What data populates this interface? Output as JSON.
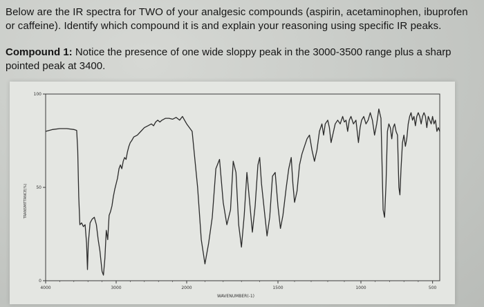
{
  "question": {
    "text": "Below are the IR spectra for TWO of your analgesic compounds (aspirin, acetaminophen, ibuprofen or caffeine). Identify which compound it is and explain your reasoning using specific IR peaks."
  },
  "compound": {
    "label": "Compound 1:",
    "note": "Notice the presence of one wide sloppy peak in the 3000-3500 range plus a sharp pointed peak at 3400."
  },
  "colors": {
    "trace": "#2a2a2a",
    "frame": "#3a3a3a",
    "paper": "#e4e6e2"
  },
  "chart_data": {
    "type": "line",
    "x_axis": {
      "range": [
        4000,
        450
      ],
      "tick_labels": [
        "4000",
        "3000",
        "2000",
        "1500",
        "1000",
        "500"
      ],
      "label": "WAVENUMBER(-1)",
      "reversed": true
    },
    "y_axis": {
      "range": [
        0,
        100
      ],
      "tick_labels": [
        "100",
        "50",
        "0"
      ],
      "label": "TRANSMITTANCE(%)"
    },
    "grid": false,
    "series": [
      {
        "points": [
          [
            4000,
            80
          ],
          [
            3900,
            81
          ],
          [
            3800,
            81.5
          ],
          [
            3700,
            81.5
          ],
          [
            3600,
            81
          ],
          [
            3560,
            80.5
          ],
          [
            3545,
            70
          ],
          [
            3530,
            45
          ],
          [
            3515,
            30
          ],
          [
            3490,
            31
          ],
          [
            3465,
            29
          ],
          [
            3440,
            30
          ],
          [
            3420,
            20
          ],
          [
            3407,
            6
          ],
          [
            3395,
            20
          ],
          [
            3370,
            31
          ],
          [
            3340,
            33
          ],
          [
            3310,
            34
          ],
          [
            3280,
            30
          ],
          [
            3255,
            22
          ],
          [
            3230,
            16
          ],
          [
            3200,
            5
          ],
          [
            3180,
            3
          ],
          [
            3160,
            12
          ],
          [
            3140,
            27
          ],
          [
            3120,
            22
          ],
          [
            3100,
            35
          ],
          [
            3080,
            37
          ],
          [
            3060,
            40
          ],
          [
            3040,
            45
          ],
          [
            3020,
            49
          ],
          [
            3000,
            52
          ],
          [
            2980,
            55
          ],
          [
            2960,
            60
          ],
          [
            2940,
            62
          ],
          [
            2920,
            60
          ],
          [
            2900,
            64
          ],
          [
            2880,
            66
          ],
          [
            2860,
            65
          ],
          [
            2840,
            69
          ],
          [
            2820,
            72
          ],
          [
            2800,
            74
          ],
          [
            2780,
            75
          ],
          [
            2750,
            77
          ],
          [
            2700,
            78
          ],
          [
            2650,
            80
          ],
          [
            2600,
            82
          ],
          [
            2550,
            83
          ],
          [
            2500,
            84
          ],
          [
            2470,
            83
          ],
          [
            2440,
            85
          ],
          [
            2410,
            86
          ],
          [
            2380,
            85
          ],
          [
            2350,
            86
          ],
          [
            2300,
            87
          ],
          [
            2250,
            87
          ],
          [
            2200,
            86.5
          ],
          [
            2150,
            87.5
          ],
          [
            2100,
            86
          ],
          [
            2060,
            88
          ],
          [
            2030,
            86
          ],
          [
            2000,
            84
          ],
          [
            1970,
            80
          ],
          [
            1940,
            50
          ],
          [
            1920,
            22
          ],
          [
            1900,
            9
          ],
          [
            1880,
            20
          ],
          [
            1860,
            34
          ],
          [
            1840,
            60
          ],
          [
            1820,
            65
          ],
          [
            1800,
            42
          ],
          [
            1780,
            30
          ],
          [
            1760,
            38
          ],
          [
            1745,
            64
          ],
          [
            1730,
            58
          ],
          [
            1715,
            30
          ],
          [
            1700,
            18
          ],
          [
            1685,
            35
          ],
          [
            1670,
            58
          ],
          [
            1655,
            42
          ],
          [
            1640,
            26
          ],
          [
            1625,
            40
          ],
          [
            1610,
            62
          ],
          [
            1600,
            66
          ],
          [
            1590,
            52
          ],
          [
            1575,
            38
          ],
          [
            1560,
            24
          ],
          [
            1545,
            34
          ],
          [
            1530,
            56
          ],
          [
            1515,
            58
          ],
          [
            1500,
            40
          ],
          [
            1485,
            28
          ],
          [
            1470,
            35
          ],
          [
            1450,
            50
          ],
          [
            1435,
            60
          ],
          [
            1420,
            66
          ],
          [
            1410,
            52
          ],
          [
            1400,
            42
          ],
          [
            1385,
            48
          ],
          [
            1370,
            62
          ],
          [
            1355,
            68
          ],
          [
            1340,
            72
          ],
          [
            1325,
            76
          ],
          [
            1310,
            78
          ],
          [
            1295,
            70
          ],
          [
            1280,
            64
          ],
          [
            1265,
            70
          ],
          [
            1250,
            80
          ],
          [
            1235,
            84
          ],
          [
            1225,
            78
          ],
          [
            1215,
            84
          ],
          [
            1200,
            86
          ],
          [
            1190,
            82
          ],
          [
            1180,
            74
          ],
          [
            1170,
            78
          ],
          [
            1155,
            84
          ],
          [
            1140,
            86
          ],
          [
            1125,
            84
          ],
          [
            1110,
            88
          ],
          [
            1100,
            85
          ],
          [
            1090,
            86
          ],
          [
            1080,
            80
          ],
          [
            1070,
            86
          ],
          [
            1060,
            88
          ],
          [
            1045,
            84
          ],
          [
            1030,
            86
          ],
          [
            1015,
            74
          ],
          [
            1005,
            82
          ],
          [
            995,
            86
          ],
          [
            980,
            88
          ],
          [
            965,
            84
          ],
          [
            950,
            86
          ],
          [
            935,
            90
          ],
          [
            920,
            86
          ],
          [
            905,
            78
          ],
          [
            890,
            84
          ],
          [
            875,
            92
          ],
          [
            860,
            87
          ],
          [
            845,
            38
          ],
          [
            835,
            34
          ],
          [
            825,
            52
          ],
          [
            815,
            80
          ],
          [
            805,
            84
          ],
          [
            795,
            82
          ],
          [
            785,
            76
          ],
          [
            775,
            82
          ],
          [
            765,
            84
          ],
          [
            755,
            80
          ],
          [
            745,
            78
          ],
          [
            735,
            50
          ],
          [
            728,
            46
          ],
          [
            720,
            60
          ],
          [
            710,
            74
          ],
          [
            700,
            78
          ],
          [
            690,
            72
          ],
          [
            680,
            76
          ],
          [
            670,
            84
          ],
          [
            660,
            88
          ],
          [
            650,
            90
          ],
          [
            640,
            86
          ],
          [
            630,
            88
          ],
          [
            620,
            83
          ],
          [
            610,
            88
          ],
          [
            600,
            90
          ],
          [
            590,
            88
          ],
          [
            580,
            84
          ],
          [
            570,
            88
          ],
          [
            560,
            90
          ],
          [
            550,
            88
          ],
          [
            540,
            82
          ],
          [
            530,
            88
          ],
          [
            520,
            86
          ],
          [
            510,
            84
          ],
          [
            500,
            88
          ],
          [
            490,
            84
          ],
          [
            480,
            86
          ],
          [
            470,
            80
          ],
          [
            460,
            82
          ],
          [
            450,
            80
          ]
        ]
      }
    ]
  }
}
